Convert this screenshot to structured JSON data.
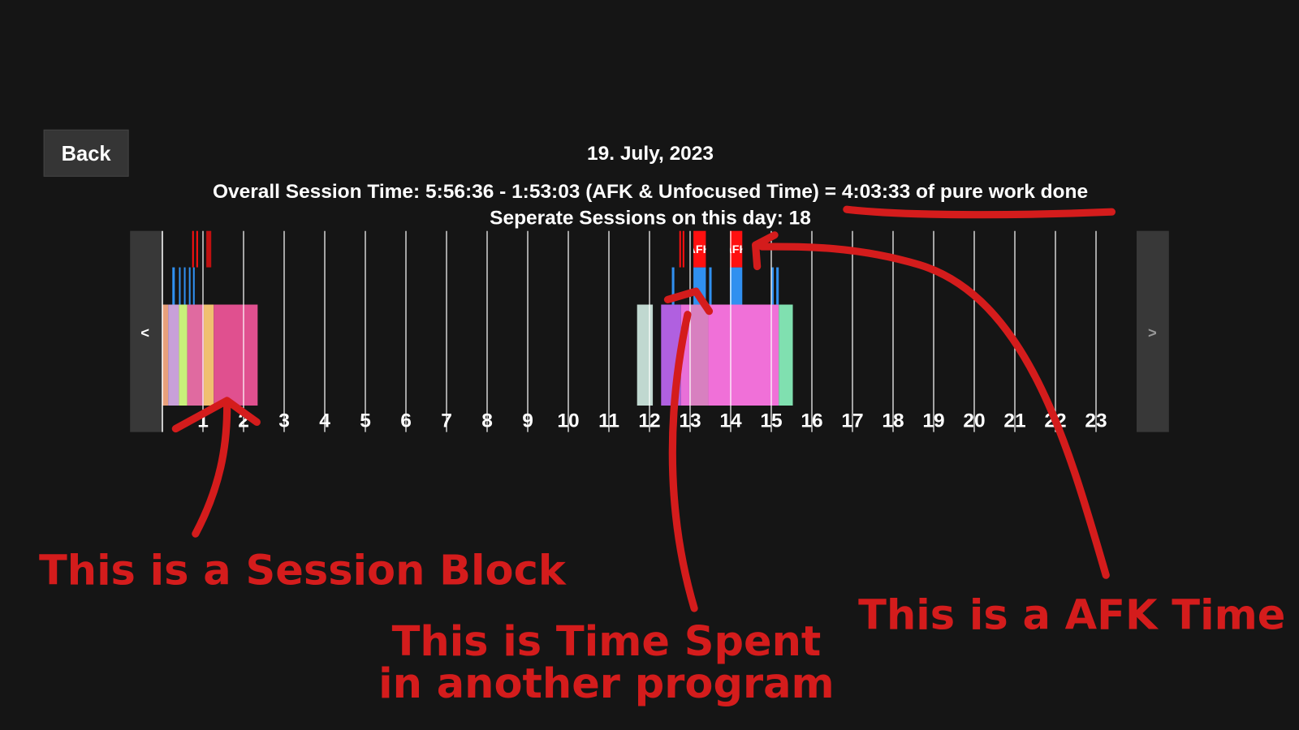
{
  "back_button": "Back",
  "date": "19. July, 2023",
  "summary": "Overall Session Time: 5:56:36 - 1:53:03 (AFK & Unfocused Time) = 4:03:33 of pure work done",
  "sessions_line": "Seperate Sessions on this day: 18",
  "timeline": {
    "prev": "<",
    "next": ">",
    "afk_label": "AFK",
    "hours": [
      1,
      2,
      3,
      4,
      5,
      6,
      7,
      8,
      9,
      10,
      11,
      12,
      13,
      14,
      15,
      16,
      17,
      18,
      19,
      20,
      21,
      22,
      23
    ]
  },
  "annotations": {
    "session_block": "This is a Session Block",
    "other_program": [
      "This is Time Spent",
      "in another program"
    ],
    "afk_time": "This is a AFK Time"
  }
}
